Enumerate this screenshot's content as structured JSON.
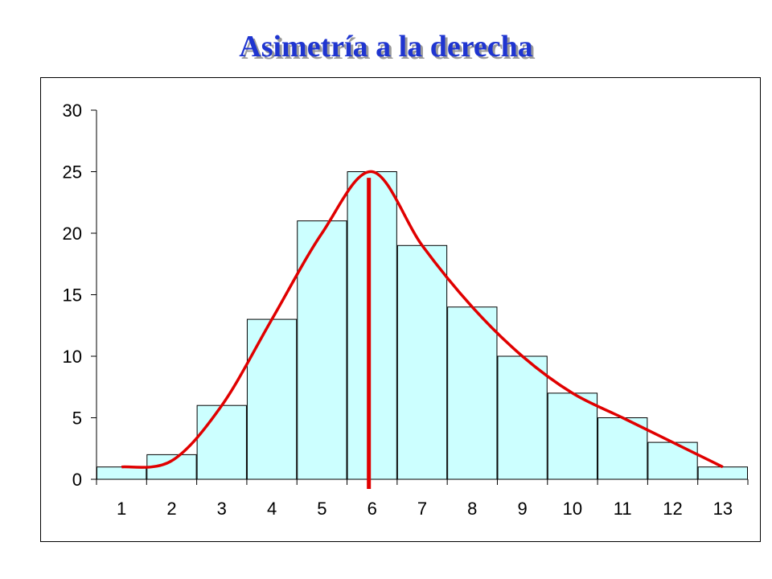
{
  "title": "Asimetría a la derecha",
  "chart_data": {
    "type": "bar",
    "categories": [
      "1",
      "2",
      "3",
      "4",
      "5",
      "6",
      "7",
      "8",
      "9",
      "10",
      "11",
      "12",
      "13"
    ],
    "values": [
      1,
      2,
      6,
      13,
      21,
      25,
      19,
      14,
      10,
      7,
      5,
      3,
      1
    ],
    "ylim": [
      0,
      30
    ],
    "yticks": [
      0,
      5,
      10,
      15,
      20,
      25,
      30
    ],
    "grid": false,
    "smooth_curve_values": [
      1,
      1.5,
      6,
      13,
      20,
      25,
      19,
      14,
      10,
      7,
      5,
      3,
      1
    ],
    "mode_marker_category": "6",
    "colors": {
      "bar_fill": "#ccffff",
      "bar_stroke": "#000000",
      "curve": "#e00000",
      "title": "#1f35d0"
    }
  }
}
